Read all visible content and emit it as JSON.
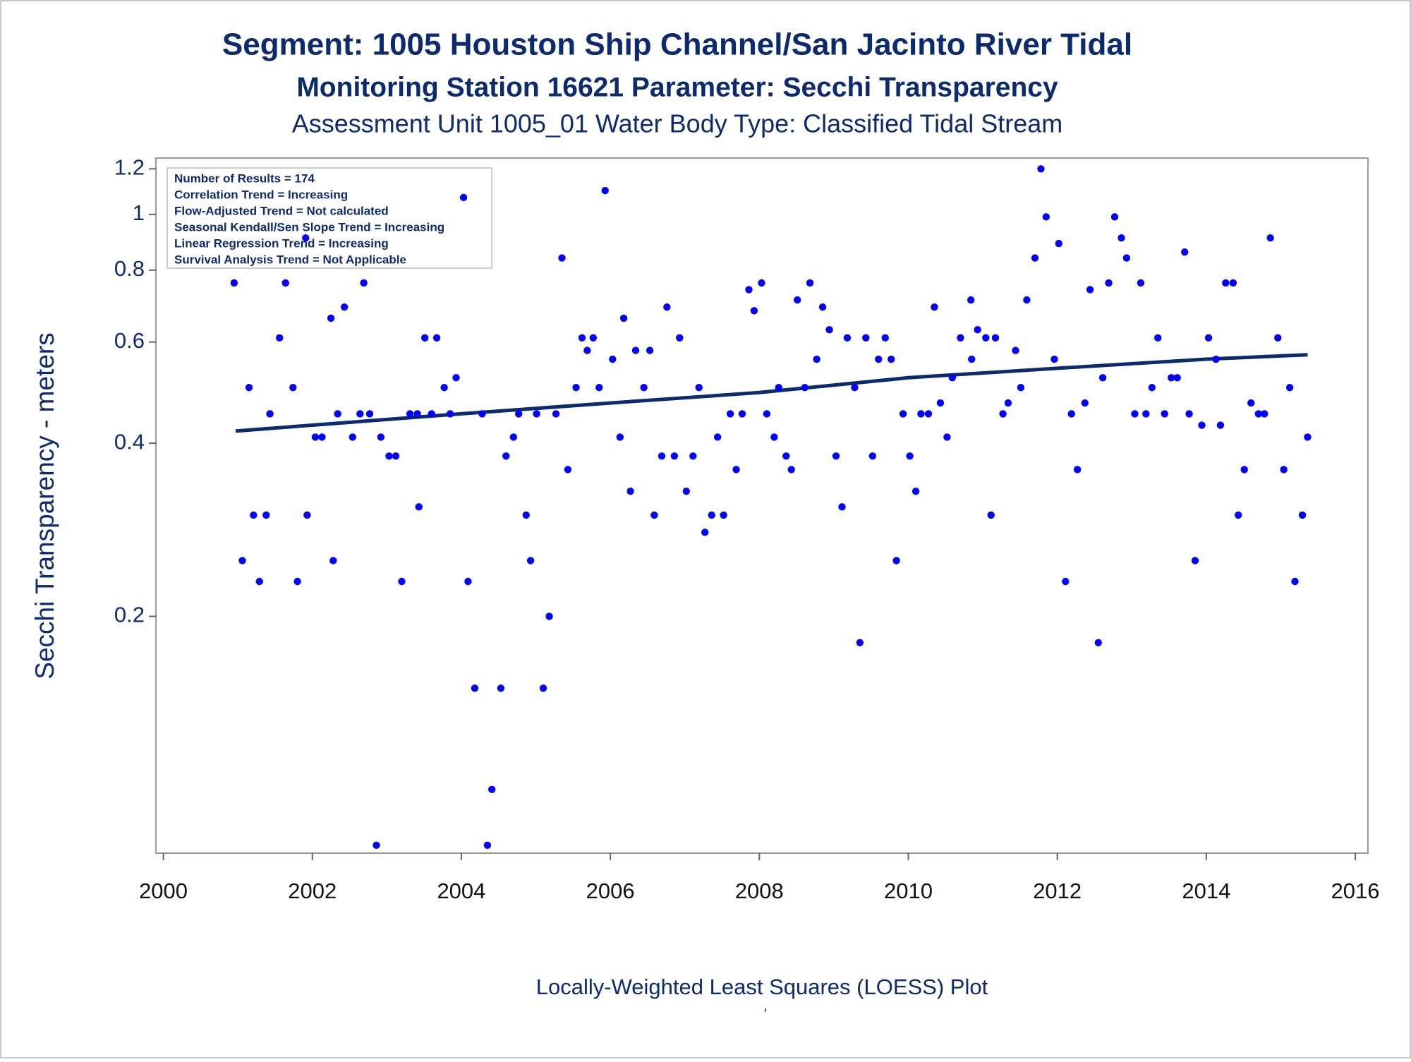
{
  "chart_data": {
    "type": "scatter",
    "title": "Segment: 1005  Houston Ship Channel/San Jacinto River Tidal",
    "subtitle": "Monitoring Station 16621 Parameter: Secchi Transparency",
    "subtitle2": "Assessment Unit 1005_01   Water Body Type: Classified Tidal Stream",
    "ylabel": "Secchi Transparency - meters",
    "xlabel": "Locally-Weighted Least Squares (LOESS) Plot",
    "footnote": "'",
    "annotations": [
      "Number of Results = 174",
      "Correlation Trend = Increasing",
      "Flow-Adjusted Trend = Not calculated",
      "Seasonal Kendall/Sen Slope Trend = Increasing",
      "Linear Regression Trend = Increasing",
      "Survival Analysis Trend = Not Applicable"
    ],
    "log_y": true,
    "grid": false,
    "xlim": [
      1999.9,
      2016.17
    ],
    "xticks": [
      2000,
      2002,
      2004,
      2006,
      2008,
      2010,
      2012,
      2014,
      2016
    ],
    "ylim": [
      0.0775,
      1.253
    ],
    "yticks": [
      0.2,
      0.4,
      0.6,
      0.8,
      1,
      1.2
    ],
    "point_color": "#0000ff",
    "line_color": "#0c2a6e",
    "points": {
      "x": [
        2000.95,
        2001.06,
        2001.15,
        2001.21,
        2001.29,
        2001.38,
        2001.43,
        2001.56,
        2001.64,
        2001.74,
        2001.8,
        2001.91,
        2001.93,
        2002.04,
        2002.13,
        2002.25,
        2002.28,
        2002.34,
        2002.43,
        2002.54,
        2002.64,
        2002.69,
        2002.77,
        2002.86,
        2002.92,
        2003.03,
        2003.12,
        2003.2,
        2003.31,
        2003.41,
        2003.43,
        2003.51,
        2003.6,
        2003.67,
        2003.77,
        2003.85,
        2003.93,
        2004.03,
        2004.09,
        2004.18,
        2004.28,
        2004.35,
        2004.41,
        2004.53,
        2004.6,
        2004.7,
        2004.77,
        2004.87,
        2004.93,
        2005.01,
        2005.1,
        2005.18,
        2005.27,
        2005.35,
        2005.43,
        2005.54,
        2005.62,
        2005.69,
        2005.77,
        2005.85,
        2005.93,
        2006.03,
        2006.13,
        2006.18,
        2006.27,
        2006.34,
        2006.45,
        2006.53,
        2006.59,
        2006.69,
        2006.76,
        2006.86,
        2006.93,
        2007.02,
        2007.11,
        2007.19,
        2007.27,
        2007.36,
        2007.44,
        2007.52,
        2007.61,
        2007.69,
        2007.77,
        2007.86,
        2007.93,
        2008.03,
        2008.1,
        2008.2,
        2008.26,
        2008.36,
        2008.43,
        2008.51,
        2008.61,
        2008.68,
        2008.77,
        2008.85,
        2008.94,
        2009.03,
        2009.11,
        2009.18,
        2009.28,
        2009.35,
        2009.43,
        2009.52,
        2009.6,
        2009.69,
        2009.77,
        2009.84,
        2009.93,
        2010.02,
        2010.1,
        2010.17,
        2010.27,
        2010.35,
        2010.43,
        2010.52,
        2010.59,
        2010.7,
        2010.84,
        2010.85,
        2010.93,
        2011.04,
        2011.11,
        2011.17,
        2011.27,
        2011.34,
        2011.44,
        2011.51,
        2011.59,
        2011.7,
        2011.78,
        2011.85,
        2011.96,
        2012.02,
        2012.11,
        2012.19,
        2012.27,
        2012.37,
        2012.44,
        2012.55,
        2012.61,
        2012.69,
        2012.77,
        2012.86,
        2012.93,
        2013.04,
        2013.12,
        2013.19,
        2013.27,
        2013.35,
        2013.44,
        2013.53,
        2013.61,
        2013.71,
        2013.77,
        2013.85,
        2013.94,
        2014.03,
        2014.13,
        2014.19,
        2014.26,
        2014.36,
        2014.43,
        2014.51,
        2014.6,
        2014.7,
        2014.78,
        2014.86,
        2014.96,
        2015.04,
        2015.12,
        2015.19,
        2015.29,
        2015.36
      ],
      "values": [
        0.76,
        0.25,
        0.5,
        0.3,
        0.23,
        0.3,
        0.45,
        0.61,
        0.76,
        0.5,
        0.23,
        0.91,
        0.3,
        0.41,
        0.41,
        0.66,
        0.25,
        0.45,
        0.69,
        0.41,
        0.45,
        0.76,
        0.45,
        0.08,
        0.41,
        0.38,
        0.38,
        0.23,
        0.45,
        0.45,
        0.31,
        0.61,
        0.45,
        0.61,
        0.5,
        0.45,
        0.52,
        1.07,
        0.23,
        0.15,
        0.45,
        0.08,
        0.1,
        0.15,
        0.38,
        0.41,
        0.45,
        0.3,
        0.25,
        0.45,
        0.15,
        0.2,
        0.45,
        0.84,
        0.36,
        0.5,
        0.61,
        0.58,
        0.61,
        0.5,
        1.1,
        0.56,
        0.41,
        0.66,
        0.33,
        0.58,
        0.5,
        0.58,
        0.3,
        0.38,
        0.69,
        0.38,
        0.61,
        0.33,
        0.38,
        0.5,
        0.28,
        0.3,
        0.41,
        0.3,
        0.45,
        0.36,
        0.45,
        0.74,
        0.68,
        0.76,
        0.45,
        0.41,
        0.5,
        0.38,
        0.36,
        0.71,
        0.5,
        0.76,
        0.56,
        0.69,
        0.63,
        0.38,
        0.31,
        0.61,
        0.5,
        0.18,
        0.61,
        0.38,
        0.56,
        0.61,
        0.56,
        0.25,
        0.45,
        0.38,
        0.33,
        0.45,
        0.45,
        0.69,
        0.47,
        0.41,
        0.52,
        0.61,
        0.71,
        0.56,
        0.63,
        0.61,
        0.3,
        0.61,
        0.45,
        0.47,
        0.58,
        0.5,
        0.71,
        0.84,
        1.2,
        0.99,
        0.56,
        0.89,
        0.23,
        0.45,
        0.36,
        0.47,
        0.74,
        0.18,
        0.52,
        0.76,
        0.99,
        0.91,
        0.84,
        0.45,
        0.76,
        0.45,
        0.5,
        0.61,
        0.45,
        0.52,
        0.52,
        0.86,
        0.45,
        0.25,
        0.43,
        0.61,
        0.56,
        0.43,
        0.76,
        0.76,
        0.3,
        0.36,
        0.47,
        0.45,
        0.45,
        0.91,
        0.61,
        0.36,
        0.5,
        0.23,
        0.3,
        0.41
      ]
    },
    "fit": {
      "x": [
        2000.97,
        2002,
        2004,
        2006,
        2008,
        2010,
        2012,
        2014,
        2015.36
      ],
      "values": [
        0.42,
        0.43,
        0.45,
        0.47,
        0.49,
        0.52,
        0.54,
        0.56,
        0.57
      ]
    }
  }
}
